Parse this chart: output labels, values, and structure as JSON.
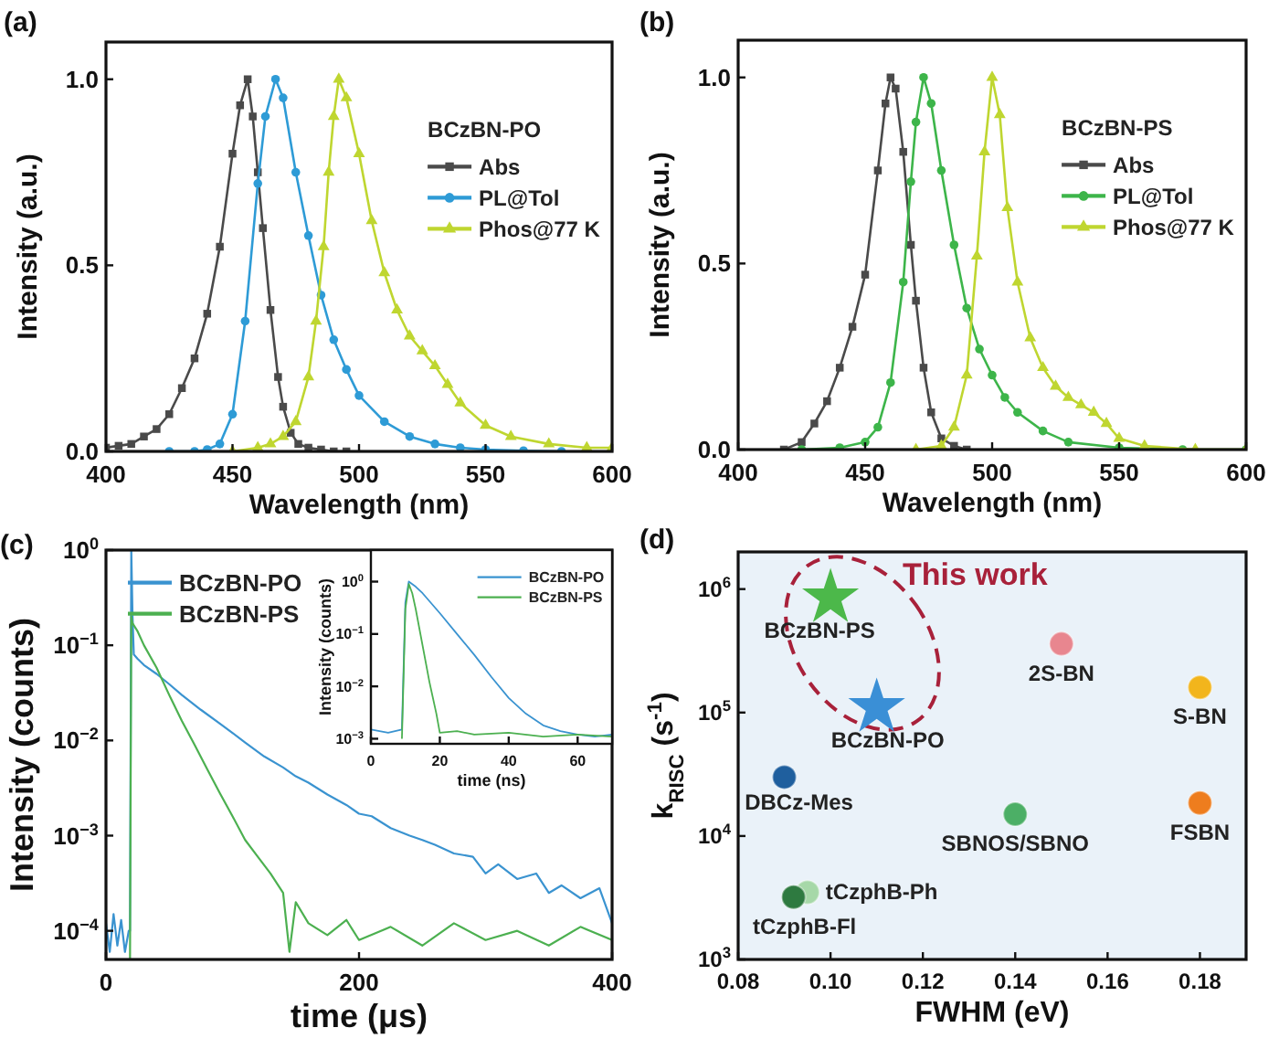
{
  "chart_data": [
    {
      "type": "line",
      "title": "(a)",
      "xlabel": "Wavelength (nm)",
      "ylabel": "Intensity (a.u.)",
      "xlim": [
        400,
        600
      ],
      "xticks": [
        400,
        450,
        500,
        550,
        600
      ],
      "ylim": [
        0,
        1.1
      ],
      "yticks": [
        {
          "value": 0,
          "label": "0.0"
        },
        {
          "value": 0.5,
          "label": "0.5"
        },
        {
          "value": 1,
          "label": "1.0"
        }
      ],
      "legend": "top right",
      "legend_title": "BCzBN-PO",
      "series": [
        {
          "name": "Abs",
          "color": "#4a4a4a",
          "marker": "square",
          "x": [
            400,
            405,
            410,
            415,
            420,
            425,
            430,
            435,
            440,
            445,
            450,
            453,
            456,
            458,
            460,
            462,
            465,
            468,
            470,
            473,
            476,
            480,
            485,
            490,
            495
          ],
          "values": [
            0.01,
            0.015,
            0.02,
            0.04,
            0.06,
            0.1,
            0.17,
            0.25,
            0.37,
            0.55,
            0.8,
            0.93,
            1.0,
            0.9,
            0.75,
            0.6,
            0.38,
            0.2,
            0.12,
            0.05,
            0.02,
            0.01,
            0.005,
            0,
            0
          ]
        },
        {
          "name": "PL@Tol",
          "color": "#2e9bd6",
          "marker": "circle",
          "x": [
            425,
            435,
            440,
            445,
            450,
            455,
            460,
            463,
            467,
            470,
            475,
            480,
            485,
            490,
            495,
            500,
            510,
            520,
            530,
            540,
            550,
            565,
            580
          ],
          "values": [
            0,
            0,
            0.005,
            0.02,
            0.1,
            0.35,
            0.72,
            0.9,
            1.0,
            0.95,
            0.75,
            0.58,
            0.42,
            0.3,
            0.22,
            0.15,
            0.08,
            0.04,
            0.02,
            0.01,
            0.005,
            0.002,
            0
          ]
        },
        {
          "name": "Phos@77 K",
          "color": "#bfd630",
          "marker": "triangle",
          "x": [
            450,
            460,
            465,
            470,
            475,
            480,
            483,
            486,
            488,
            490,
            492,
            495,
            500,
            505,
            510,
            515,
            520,
            525,
            530,
            535,
            540,
            550,
            560,
            575,
            590,
            600
          ],
          "values": [
            0,
            0.01,
            0.02,
            0.04,
            0.08,
            0.2,
            0.35,
            0.55,
            0.75,
            0.9,
            1.0,
            0.95,
            0.8,
            0.62,
            0.48,
            0.38,
            0.31,
            0.27,
            0.23,
            0.18,
            0.13,
            0.07,
            0.04,
            0.02,
            0.01,
            0.01
          ]
        }
      ]
    },
    {
      "type": "line",
      "title": "(b)",
      "xlabel": "Wavelength (nm)",
      "ylabel": "Intensity (a.u.)",
      "xlim": [
        400,
        600
      ],
      "xticks": [
        400,
        450,
        500,
        550,
        600
      ],
      "ylim": [
        0,
        1.1
      ],
      "yticks": [
        {
          "value": 0,
          "label": "0.0"
        },
        {
          "value": 0.5,
          "label": "0.5"
        },
        {
          "value": 1,
          "label": "1.0"
        }
      ],
      "legend": "top right",
      "legend_title": "BCzBN-PS",
      "series": [
        {
          "name": "Abs",
          "color": "#4a4a4a",
          "marker": "square",
          "x": [
            418,
            425,
            430,
            435,
            440,
            445,
            450,
            455,
            458,
            460,
            462,
            465,
            468,
            470,
            473,
            476,
            480,
            485,
            490
          ],
          "values": [
            0,
            0.02,
            0.07,
            0.13,
            0.22,
            0.33,
            0.47,
            0.75,
            0.93,
            1.0,
            0.97,
            0.8,
            0.55,
            0.4,
            0.22,
            0.1,
            0.03,
            0.01,
            0
          ]
        },
        {
          "name": "PL@Tol",
          "color": "#3db54a",
          "marker": "circle",
          "x": [
            425,
            440,
            450,
            455,
            460,
            465,
            468,
            470,
            473,
            476,
            480,
            485,
            490,
            495,
            500,
            505,
            510,
            520,
            530,
            550,
            575,
            600
          ],
          "values": [
            0,
            0.005,
            0.02,
            0.06,
            0.18,
            0.45,
            0.72,
            0.88,
            1.0,
            0.93,
            0.75,
            0.55,
            0.38,
            0.27,
            0.2,
            0.14,
            0.1,
            0.05,
            0.02,
            0.005,
            0,
            0
          ]
        },
        {
          "name": "Phos@77 K",
          "color": "#bfd630",
          "marker": "triangle",
          "x": [
            470,
            480,
            485,
            490,
            494,
            497,
            500,
            503,
            506,
            510,
            515,
            520,
            525,
            530,
            535,
            540,
            545,
            550,
            560,
            580,
            600
          ],
          "values": [
            0,
            0.01,
            0.06,
            0.2,
            0.52,
            0.8,
            1.0,
            0.9,
            0.65,
            0.45,
            0.3,
            0.22,
            0.17,
            0.14,
            0.12,
            0.1,
            0.07,
            0.03,
            0.01,
            0,
            0
          ]
        }
      ]
    },
    {
      "type": "line",
      "title": "(c)",
      "xlabel": "time (μs)",
      "ylabel": "Intensity (counts)",
      "log": "y",
      "xlim": [
        0,
        400
      ],
      "xticks": [
        0,
        200,
        400
      ],
      "ylim": [
        5e-05,
        1
      ],
      "yticks": [
        {
          "value": 0.0001,
          "label": "10$^{−4}$"
        },
        {
          "value": 0.001,
          "label": "10$^{−3}$"
        },
        {
          "value": 0.01,
          "label": "10$^{−2}$"
        },
        {
          "value": 0.1,
          "label": "10$^{−1}$"
        },
        {
          "value": 1,
          "label": "10$^{0}$"
        }
      ],
      "legend": "top left",
      "series": [
        {
          "name": "BCzBN-PO",
          "color": "#3a93d0",
          "x": [
            0,
            3,
            6,
            9,
            12,
            15,
            18,
            19,
            20,
            21,
            22,
            25,
            30,
            40,
            50,
            60,
            75,
            90,
            100,
            110,
            125,
            140,
            150,
            160,
            175,
            190,
            200,
            210,
            225,
            240,
            250,
            260,
            275,
            290,
            300,
            310,
            325,
            340,
            350,
            360,
            375,
            390,
            400
          ],
          "values": [
            0.00012,
            6e-05,
            0.00015,
            7e-05,
            0.00013,
            6e-05,
            0.0001,
            0.0001,
            1,
            0.2,
            0.08,
            0.072,
            0.062,
            0.05,
            0.039,
            0.03,
            0.021,
            0.015,
            0.012,
            0.0095,
            0.0068,
            0.0052,
            0.0042,
            0.0036,
            0.0027,
            0.0021,
            0.0017,
            0.0016,
            0.0012,
            0.001,
            0.0009,
            0.0008,
            0.00065,
            0.0006,
            0.0004,
            0.0005,
            0.00035,
            0.0004,
            0.00025,
            0.0003,
            0.00022,
            0.00028,
            0.00012
          ]
        },
        {
          "name": "BCzBN-PS",
          "color": "#4cb050",
          "x": [
            19,
            20,
            21,
            25,
            30,
            40,
            50,
            60,
            70,
            80,
            90,
            100,
            110,
            120,
            130,
            140,
            145,
            150,
            160,
            175,
            190,
            200,
            225,
            250,
            275,
            300,
            325,
            350,
            375,
            400
          ],
          "values": [
            5e-05,
            0.2,
            0.17,
            0.14,
            0.1,
            0.058,
            0.03,
            0.016,
            0.009,
            0.005,
            0.0028,
            0.0016,
            0.0009,
            0.0006,
            0.0004,
            0.00025,
            6e-05,
            0.0002,
            0.00012,
            9e-05,
            0.00013,
            8e-05,
            0.00011,
            7e-05,
            0.00012,
            8e-05,
            0.0001,
            7e-05,
            0.00011,
            8e-05
          ]
        }
      ]
    },
    {
      "type": "line",
      "xlabel": "time (ns)",
      "ylabel": "Intensity (counts)",
      "log": "y",
      "xlim": [
        0,
        70
      ],
      "xticks": [
        0,
        20,
        40,
        60
      ],
      "ylim": [
        0.0008,
        4
      ],
      "yticks": [
        {
          "value": 0.001,
          "label": "10$^{−3}$"
        },
        {
          "value": 0.01,
          "label": "10$^{−2}$"
        },
        {
          "value": 0.1,
          "label": "10$^{−1}$"
        },
        {
          "value": 1,
          "label": "10$^{0}$"
        }
      ],
      "legend": "top right",
      "series": [
        {
          "name": "BCzBN-PO",
          "color": "#3a93d0",
          "x": [
            0,
            5,
            9,
            10,
            11,
            13,
            15,
            20,
            25,
            30,
            35,
            40,
            45,
            50,
            55,
            60,
            65,
            70
          ],
          "values": [
            0.0015,
            0.0013,
            0.0015,
            0.4,
            1.0,
            0.8,
            0.6,
            0.25,
            0.1,
            0.04,
            0.015,
            0.006,
            0.003,
            0.0018,
            0.0014,
            0.0012,
            0.0011,
            0.0012
          ]
        },
        {
          "name": "BCzBN-PS",
          "color": "#4cb050",
          "x": [
            9,
            10,
            11,
            12,
            13,
            15,
            17,
            19,
            20,
            25,
            30,
            40,
            50,
            60,
            70
          ],
          "values": [
            0.001,
            0.3,
            0.9,
            0.6,
            0.3,
            0.06,
            0.012,
            0.003,
            0.0013,
            0.0014,
            0.0012,
            0.0013,
            0.0011,
            0.0012,
            0.0011
          ]
        }
      ]
    },
    {
      "type": "scatter",
      "title": "(d)",
      "xlabel": "FWHM (eV)",
      "ylabel": "k$_{RISC}$ (s$^{-1}$)",
      "log": "y",
      "xlim": [
        0.08,
        0.19
      ],
      "xticks": [
        {
          "value": 0.08,
          "label": "0.08"
        },
        {
          "value": 0.1,
          "label": "0.10"
        },
        {
          "value": 0.12,
          "label": "0.12"
        },
        {
          "value": 0.14,
          "label": "0.14"
        },
        {
          "value": 0.16,
          "label": "0.16"
        },
        {
          "value": 0.18,
          "label": "0.18"
        }
      ],
      "ylim": [
        1000,
        2000000
      ],
      "yticks": [
        {
          "value": 1000,
          "label": "10$^{3}$"
        },
        {
          "value": 10000,
          "label": "10$^{4}$"
        },
        {
          "value": 100000,
          "label": "10$^{5}$"
        },
        {
          "value": 1000000,
          "label": "10$^{6}$"
        }
      ],
      "annotations": [
        "This work"
      ],
      "series": [
        {
          "name": "BCzBN-PS",
          "color": "#4cb84a",
          "marker": "star",
          "x": [
            0.1
          ],
          "values": [
            850000
          ]
        },
        {
          "name": "BCzBN-PO",
          "color": "#3a8fd6",
          "marker": "star",
          "x": [
            0.11
          ],
          "values": [
            110000
          ]
        },
        {
          "name": "2S-BN",
          "color": "#e8868f",
          "marker": "circle",
          "x": [
            0.15
          ],
          "values": [
            360000
          ]
        },
        {
          "name": "S-BN",
          "color": "#f2b51c",
          "marker": "circle",
          "x": [
            0.18
          ],
          "values": [
            160000
          ]
        },
        {
          "name": "DBCz-Mes",
          "color": "#1f5f9e",
          "marker": "circle",
          "x": [
            0.09
          ],
          "values": [
            30000
          ]
        },
        {
          "name": "SBNOS/SBNO",
          "color": "#4caf66",
          "marker": "circle",
          "x": [
            0.14
          ],
          "values": [
            15000
          ]
        },
        {
          "name": "FSBN",
          "color": "#ee7d1e",
          "marker": "circle",
          "x": [
            0.18
          ],
          "values": [
            18500
          ]
        },
        {
          "name": "tCzphB-Ph",
          "color": "#a6d8a8",
          "marker": "circle",
          "x": [
            0.095
          ],
          "values": [
            3500
          ]
        },
        {
          "name": "tCzphB-Fl",
          "color": "#2e7a40",
          "marker": "circle",
          "x": [
            0.092
          ],
          "values": [
            3200
          ]
        }
      ]
    }
  ]
}
